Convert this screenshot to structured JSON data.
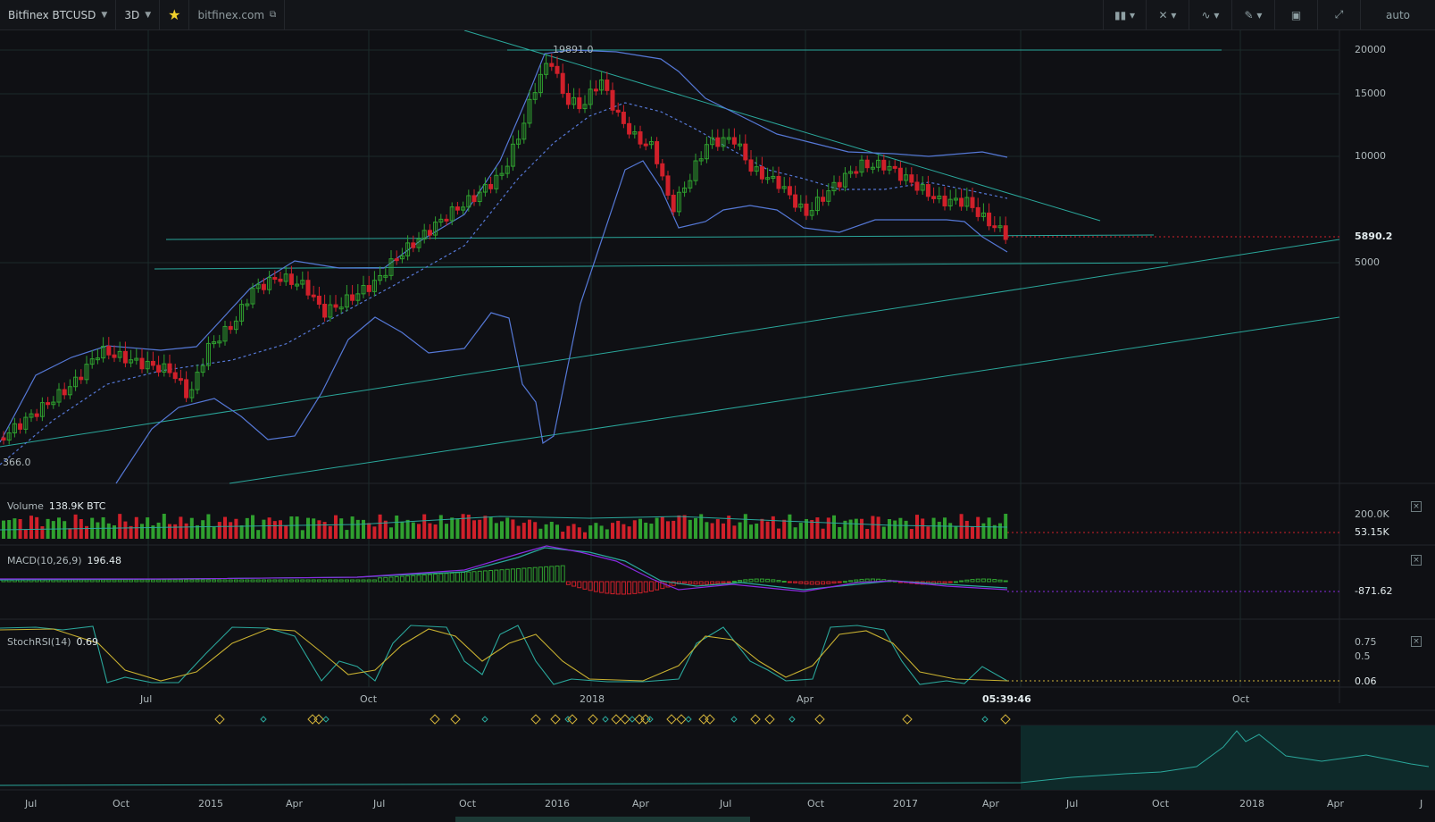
{
  "toolbar": {
    "symbol": "Bitfinex BTCUSD",
    "timeframe": "3D",
    "site": "bitfinex.com",
    "scale_mode": "auto"
  },
  "price_axis": {
    "ticks": [
      "20000",
      "15000",
      "10000",
      "5000"
    ],
    "last_price": "5890.2",
    "high_label": "19891.0",
    "low_label": "366.0"
  },
  "volume": {
    "title": "Volume",
    "value": "138.9K BTC",
    "axis_tick": "200.0K",
    "last": "53.15K"
  },
  "macd": {
    "title": "MACD(10,26,9)",
    "value": "196.48",
    "last": "-871.62"
  },
  "stochrsi": {
    "title": "StochRSI(14)",
    "value": "0.69",
    "ticks": [
      "0.75",
      "0.5"
    ],
    "last": "0.06"
  },
  "time_axis": {
    "labels": [
      "Jul",
      "Oct",
      "2018",
      "Apr",
      "Oct"
    ],
    "cursor_time": "05:39:46"
  },
  "navigator": {
    "labels": [
      "Jul",
      "Oct",
      "2015",
      "Apr",
      "Jul",
      "Oct",
      "2016",
      "Apr",
      "Jul",
      "Oct",
      "2017",
      "Apr",
      "Jul",
      "Oct",
      "2018",
      "Apr",
      "J"
    ]
  },
  "colors": {
    "up": "#2fa02f",
    "down": "#d0202a",
    "bb": "#5578d6",
    "trend": "#2aa79b",
    "macd": "#8a2be2",
    "bg": "#0f1014"
  }
}
